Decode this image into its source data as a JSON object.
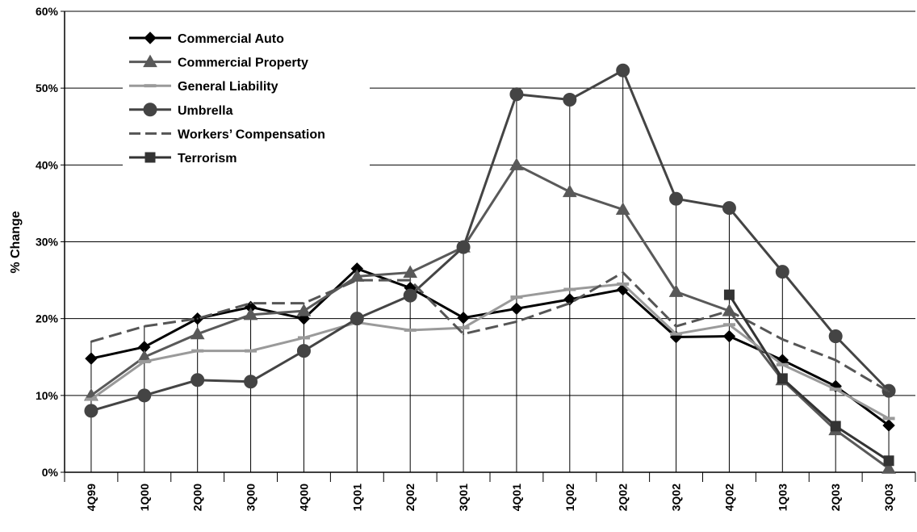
{
  "chart_data": {
    "type": "line",
    "y_label": "% Change",
    "categories": [
      "4Q99",
      "1Q00",
      "2Q00",
      "3Q00",
      "4Q00",
      "1Q01",
      "2Q02",
      "3Q01",
      "4Q01",
      "1Q02",
      "2Q02",
      "3Q02",
      "4Q02",
      "1Q03",
      "2Q03",
      "3Q03"
    ],
    "series": [
      {
        "name": "Commercial Auto",
        "color": "#000000",
        "marker": "diamond",
        "dash": false,
        "values": [
          14.8,
          16.3,
          20.0,
          21.5,
          20.0,
          26.5,
          24.0,
          20.1,
          21.3,
          22.5,
          23.8,
          17.6,
          17.7,
          14.6,
          11.2,
          6.1
        ]
      },
      {
        "name": "Commercial Property",
        "color": "#595959",
        "marker": "triangle",
        "dash": false,
        "values": [
          10.0,
          15.0,
          18.0,
          20.5,
          21.0,
          25.5,
          26.0,
          29.3,
          40.0,
          36.5,
          34.2,
          23.5,
          21.0,
          12.0,
          5.5,
          0.5
        ]
      },
      {
        "name": "General Liability",
        "color": "#9a9a9a",
        "marker": "dash",
        "dash": false,
        "values": [
          9.5,
          14.4,
          15.8,
          15.8,
          17.5,
          19.5,
          18.5,
          18.8,
          22.8,
          23.8,
          24.5,
          18.0,
          19.2,
          14.0,
          10.8,
          7.0
        ]
      },
      {
        "name": "Umbrella",
        "color": "#444444",
        "marker": "circle",
        "dash": false,
        "values": [
          8.0,
          10.0,
          12.0,
          11.8,
          15.8,
          20.0,
          23.0,
          29.3,
          49.2,
          48.5,
          52.3,
          35.6,
          34.4,
          26.1,
          17.7,
          10.6
        ]
      },
      {
        "name": "Workers’ Compensation",
        "color": "#555555",
        "marker": "none",
        "dash": true,
        "values": [
          17.0,
          19.0,
          20.0,
          22.0,
          22.0,
          25.0,
          25.0,
          18.0,
          19.6,
          22.0,
          26.0,
          19.0,
          21.0,
          17.3,
          14.6,
          10.5
        ]
      },
      {
        "name": "Terrorism",
        "color": "#333333",
        "marker": "square",
        "dash": false,
        "values": [
          null,
          null,
          null,
          null,
          null,
          null,
          null,
          null,
          null,
          null,
          null,
          null,
          23.1,
          12.2,
          6.0,
          1.5
        ]
      }
    ],
    "ylim": [
      0,
      60
    ],
    "yticks": [
      {
        "value": 0,
        "label": "0%"
      },
      {
        "value": 10,
        "label": "10%"
      },
      {
        "value": 20,
        "label": "20%"
      },
      {
        "value": 30,
        "label": "30%"
      },
      {
        "value": 40,
        "label": "40%"
      },
      {
        "value": 50,
        "label": "50%"
      },
      {
        "value": 60,
        "label": "60%"
      }
    ],
    "grid": true,
    "drop_lines": true
  }
}
